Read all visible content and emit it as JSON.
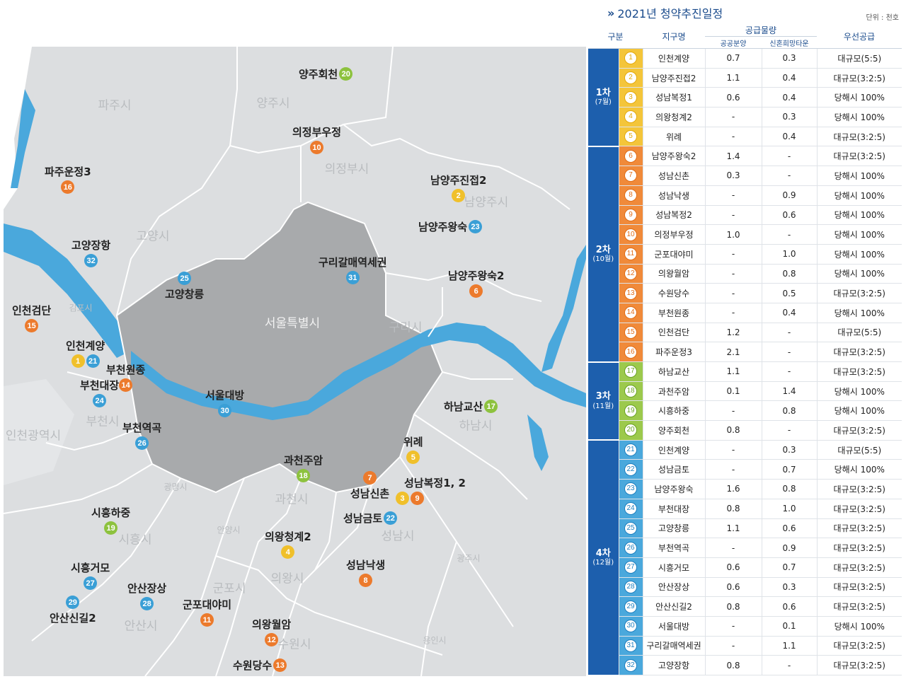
{
  "header": {
    "title": "2021년 청약추진일정",
    "unit": "단위 : 천호"
  },
  "table": {
    "columns": {
      "phase": "구분",
      "district": "지구명",
      "supply": "공급물량",
      "public_sale": "공공분양",
      "newlywed_town": "신혼희망타운",
      "priority": "우선공급"
    },
    "phases": [
      {
        "label": "1차",
        "month": "(7월)",
        "color": "y",
        "rows": [
          {
            "no": "1",
            "name": "인천계양",
            "public": "0.7",
            "newlywed": "0.3",
            "priority": "대규모(5:5)"
          },
          {
            "no": "2",
            "name": "남양주진접2",
            "public": "1.1",
            "newlywed": "0.4",
            "priority": "대규모(3:2:5)"
          },
          {
            "no": "3",
            "name": "성남복정1",
            "public": "0.6",
            "newlywed": "0.4",
            "priority": "당해시 100%"
          },
          {
            "no": "4",
            "name": "의왕청계2",
            "public": "-",
            "newlywed": "0.3",
            "priority": "당해시 100%"
          },
          {
            "no": "5",
            "name": "위례",
            "public": "-",
            "newlywed": "0.4",
            "priority": "대규모(3:2:5)"
          }
        ]
      },
      {
        "label": "2차",
        "month": "(10월)",
        "color": "o",
        "rows": [
          {
            "no": "6",
            "name": "남양주왕숙2",
            "public": "1.4",
            "newlywed": "-",
            "priority": "대규모(3:2:5)"
          },
          {
            "no": "7",
            "name": "성남신촌",
            "public": "0.3",
            "newlywed": "-",
            "priority": "당해시 100%"
          },
          {
            "no": "8",
            "name": "성남낙생",
            "public": "-",
            "newlywed": "0.9",
            "priority": "당해시 100%"
          },
          {
            "no": "9",
            "name": "성남복정2",
            "public": "-",
            "newlywed": "0.6",
            "priority": "당해시 100%"
          },
          {
            "no": "10",
            "name": "의정부우정",
            "public": "1.0",
            "newlywed": "-",
            "priority": "당해시 100%"
          },
          {
            "no": "11",
            "name": "군포대야미",
            "public": "-",
            "newlywed": "1.0",
            "priority": "당해시 100%"
          },
          {
            "no": "12",
            "name": "의왕월암",
            "public": "-",
            "newlywed": "0.8",
            "priority": "당해시 100%"
          },
          {
            "no": "13",
            "name": "수원당수",
            "public": "-",
            "newlywed": "0.5",
            "priority": "대규모(3:2:5)"
          },
          {
            "no": "14",
            "name": "부천원종",
            "public": "-",
            "newlywed": "0.4",
            "priority": "당해시 100%"
          },
          {
            "no": "15",
            "name": "인천검단",
            "public": "1.2",
            "newlywed": "-",
            "priority": "대규모(5:5)"
          },
          {
            "no": "16",
            "name": "파주운정3",
            "public": "2.1",
            "newlywed": "-",
            "priority": "대규모(3:2:5)"
          }
        ]
      },
      {
        "label": "3차",
        "month": "(11월)",
        "color": "g",
        "rows": [
          {
            "no": "17",
            "name": "하남교산",
            "public": "1.1",
            "newlywed": "-",
            "priority": "대규모(3:2:5)"
          },
          {
            "no": "18",
            "name": "과천주암",
            "public": "0.1",
            "newlywed": "1.4",
            "priority": "당해시 100%"
          },
          {
            "no": "19",
            "name": "시흥하중",
            "public": "-",
            "newlywed": "0.8",
            "priority": "당해시 100%"
          },
          {
            "no": "20",
            "name": "양주회천",
            "public": "0.8",
            "newlywed": "-",
            "priority": "대규모(3:2:5)"
          }
        ]
      },
      {
        "label": "4차",
        "month": "(12월)",
        "color": "b",
        "rows": [
          {
            "no": "21",
            "name": "인천계양",
            "public": "-",
            "newlywed": "0.3",
            "priority": "대규모(5:5)"
          },
          {
            "no": "22",
            "name": "성남금토",
            "public": "-",
            "newlywed": "0.7",
            "priority": "당해시 100%"
          },
          {
            "no": "23",
            "name": "남양주왕숙",
            "public": "1.6",
            "newlywed": "0.8",
            "priority": "대규모(3:2:5)"
          },
          {
            "no": "24",
            "name": "부천대장",
            "public": "0.8",
            "newlywed": "1.0",
            "priority": "대규모(3:2:5)"
          },
          {
            "no": "25",
            "name": "고양창릉",
            "public": "1.1",
            "newlywed": "0.6",
            "priority": "대규모(3:2:5)"
          },
          {
            "no": "26",
            "name": "부천역곡",
            "public": "-",
            "newlywed": "0.9",
            "priority": "대규모(3:2:5)"
          },
          {
            "no": "27",
            "name": "시흥거모",
            "public": "0.6",
            "newlywed": "0.7",
            "priority": "대규모(3:2:5)"
          },
          {
            "no": "28",
            "name": "안산장상",
            "public": "0.6",
            "newlywed": "0.3",
            "priority": "대규모(3:2:5)"
          },
          {
            "no": "29",
            "name": "안산신길2",
            "public": "0.8",
            "newlywed": "0.6",
            "priority": "대규모(3:2:5)"
          },
          {
            "no": "30",
            "name": "서울대방",
            "public": "-",
            "newlywed": "0.1",
            "priority": "당해시 100%"
          },
          {
            "no": "31",
            "name": "구리갈매역세권",
            "public": "-",
            "newlywed": "1.1",
            "priority": "대규모(3:2:5)"
          },
          {
            "no": "32",
            "name": "고양장항",
            "public": "0.8",
            "newlywed": "-",
            "priority": "대규모(3:2:5)"
          }
        ]
      }
    ]
  },
  "map": {
    "colors": {
      "land": "#dcdee0",
      "seoul": "#a8aaac",
      "water": "#4aa8dc",
      "border": "#ffffff"
    },
    "regions": {
      "paju": "파주시",
      "yangju": "양주시",
      "uijeongbu": "의정부시",
      "namyangju": "남양주시",
      "goyang": "고양시",
      "gimpo": "김포시",
      "seoul": "서울특별시",
      "guri": "구리시",
      "incheon": "인천광역시",
      "bucheon": "부천시",
      "hanam": "하남시",
      "gwangmyeong": "광명시",
      "gwacheon": "과천시",
      "anyang": "안양시",
      "seongnam": "성남시",
      "siheung": "시흥시",
      "gunpo": "군포시",
      "uiwang": "의왕시",
      "gwangju": "광주시",
      "ansan": "안산시",
      "suwon": "수원시",
      "yongin": "용인시"
    },
    "markers": [
      {
        "id": "m20",
        "nums": [
          {
            "n": "20",
            "c": "g"
          }
        ],
        "label": "양주회천"
      },
      {
        "id": "m10",
        "nums": [
          {
            "n": "10",
            "c": "o"
          }
        ],
        "label": "의정부우정"
      },
      {
        "id": "m16",
        "nums": [
          {
            "n": "16",
            "c": "o"
          }
        ],
        "label": "파주운정3"
      },
      {
        "id": "m2",
        "nums": [
          {
            "n": "2",
            "c": "y"
          }
        ],
        "label": "남양주진접2"
      },
      {
        "id": "m23",
        "nums": [
          {
            "n": "23",
            "c": "b"
          }
        ],
        "label": "남양주왕숙"
      },
      {
        "id": "m32",
        "nums": [
          {
            "n": "32",
            "c": "b"
          }
        ],
        "label": "고양장항"
      },
      {
        "id": "m31",
        "nums": [
          {
            "n": "31",
            "c": "b"
          }
        ],
        "label": "구리갈매역세권"
      },
      {
        "id": "m6",
        "nums": [
          {
            "n": "6",
            "c": "o"
          }
        ],
        "label": "남양주왕숙2"
      },
      {
        "id": "m25",
        "nums": [
          {
            "n": "25",
            "c": "b"
          }
        ],
        "label": "고양창릉"
      },
      {
        "id": "m15",
        "nums": [
          {
            "n": "15",
            "c": "o"
          }
        ],
        "label": "인천검단"
      },
      {
        "id": "m1",
        "nums": [
          {
            "n": "1",
            "c": "y"
          },
          {
            "n": "21",
            "c": "b"
          }
        ],
        "label": "인천계양"
      },
      {
        "id": "m14",
        "nums": [
          {
            "n": "14",
            "c": "o"
          }
        ],
        "label": "부천원종"
      },
      {
        "id": "m24",
        "nums": [
          {
            "n": "24",
            "c": "b"
          }
        ],
        "label": "부천대장"
      },
      {
        "id": "m30",
        "nums": [
          {
            "n": "30",
            "c": "b"
          }
        ],
        "label": "서울대방"
      },
      {
        "id": "m17",
        "nums": [
          {
            "n": "17",
            "c": "g"
          }
        ],
        "label": "하남교산"
      },
      {
        "id": "m26",
        "nums": [
          {
            "n": "26",
            "c": "b"
          }
        ],
        "label": "부천역곡"
      },
      {
        "id": "m5",
        "nums": [
          {
            "n": "5",
            "c": "y"
          }
        ],
        "label": "위례"
      },
      {
        "id": "m18",
        "nums": [
          {
            "n": "18",
            "c": "g"
          }
        ],
        "label": "과천주암"
      },
      {
        "id": "m7",
        "nums": [
          {
            "n": "7",
            "c": "o"
          }
        ],
        "label": "성남신촌"
      },
      {
        "id": "m39",
        "nums": [
          {
            "n": "3",
            "c": "y"
          },
          {
            "n": "9",
            "c": "o"
          }
        ],
        "label": "성남복정1, 2"
      },
      {
        "id": "m22",
        "nums": [
          {
            "n": "22",
            "c": "b"
          }
        ],
        "label": "성남금토"
      },
      {
        "id": "m19",
        "nums": [
          {
            "n": "19",
            "c": "g"
          }
        ],
        "label": "시흥하중"
      },
      {
        "id": "m4",
        "nums": [
          {
            "n": "4",
            "c": "y"
          }
        ],
        "label": "의왕청계2"
      },
      {
        "id": "m8",
        "nums": [
          {
            "n": "8",
            "c": "o"
          }
        ],
        "label": "성남낙생"
      },
      {
        "id": "m27",
        "nums": [
          {
            "n": "27",
            "c": "b"
          }
        ],
        "label": "시흥거모"
      },
      {
        "id": "m28",
        "nums": [
          {
            "n": "28",
            "c": "b"
          }
        ],
        "label": "안산장상"
      },
      {
        "id": "m29",
        "nums": [
          {
            "n": "29",
            "c": "b"
          }
        ],
        "label": "안산신길2"
      },
      {
        "id": "m11",
        "nums": [
          {
            "n": "11",
            "c": "o"
          }
        ],
        "label": "군포대야미"
      },
      {
        "id": "m12",
        "nums": [
          {
            "n": "12",
            "c": "o"
          }
        ],
        "label": "의왕월암"
      },
      {
        "id": "m13",
        "nums": [
          {
            "n": "13",
            "c": "o"
          }
        ],
        "label": "수원당수"
      }
    ]
  }
}
